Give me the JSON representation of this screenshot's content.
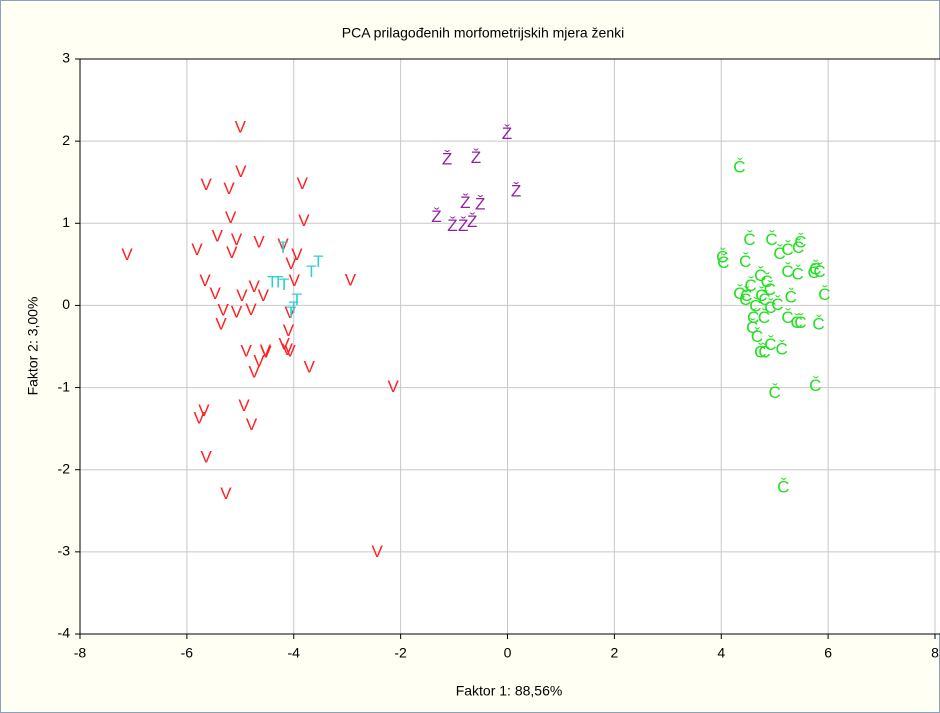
{
  "chart_data": {
    "type": "scatter",
    "title": "PCA prilagođenih morfometrijskih mjera ženki",
    "x_label": "Faktor 1: 88,56%",
    "y_label": "Faktor 2:  3,00%",
    "xlim": [
      -8,
      8
    ],
    "ylim": [
      -4,
      3
    ],
    "xticks": [
      -8,
      -6,
      -4,
      -2,
      0,
      2,
      4,
      6,
      8
    ],
    "yticks": [
      -4,
      -3,
      -2,
      -1,
      0,
      1,
      2,
      3
    ],
    "grid": true,
    "series": [
      {
        "name": "V",
        "color": "#ff2020",
        "x": [
          -7.12,
          -5.0,
          -5.64,
          -5.21,
          -4.99,
          -3.84,
          -5.18,
          -3.81,
          -5.81,
          -5.43,
          -5.07,
          -5.16,
          -4.65,
          -4.2,
          -3.94,
          -4.05,
          -5.66,
          -5.47,
          -4.97,
          -4.74,
          -4.57,
          -3.99,
          -2.94,
          -5.32,
          -5.36,
          -5.07,
          -4.8,
          -4.07,
          -4.1,
          -4.89,
          -4.52,
          -4.53,
          -4.18,
          -4.07,
          -4.65,
          -4.74,
          -3.71,
          -2.14,
          -4.93,
          -4.79,
          -5.77,
          -5.68,
          -5.64,
          -5.27,
          -2.44,
          -4.12
        ],
        "values": [
          0.61,
          2.16,
          1.46,
          1.41,
          1.62,
          1.47,
          1.06,
          1.02,
          0.67,
          0.83,
          0.79,
          0.63,
          0.76,
          0.73,
          0.61,
          0.5,
          0.29,
          0.13,
          0.11,
          0.22,
          0.11,
          0.29,
          0.3,
          -0.07,
          -0.24,
          -0.09,
          -0.06,
          -0.1,
          -0.32,
          -0.57,
          -0.58,
          -0.56,
          -0.48,
          -0.57,
          -0.69,
          -0.82,
          -0.76,
          -1.0,
          -1.23,
          -1.46,
          -1.38,
          -1.29,
          -1.86,
          -2.3,
          -3.01,
          -0.55
        ]
      },
      {
        "name": "T",
        "color": "#30d0d0",
        "x": [
          -4.2,
          -3.54,
          -3.67,
          -4.4,
          -4.29,
          -4.18,
          -3.94,
          -4.05,
          -4.0
        ],
        "values": [
          0.69,
          0.52,
          0.4,
          0.27,
          0.27,
          0.24,
          0.06,
          -0.1,
          -0.04
        ]
      },
      {
        "name": "Ž",
        "color": "#9020a0",
        "x": [
          -0.01,
          -1.13,
          -0.59,
          0.16,
          -0.79,
          -0.51,
          -1.33,
          -1.03,
          -0.83,
          -0.66
        ],
        "values": [
          2.08,
          1.77,
          1.79,
          1.38,
          1.24,
          1.22,
          1.07,
          0.96,
          0.96,
          1.01
        ]
      },
      {
        "name": "Č",
        "color": "#20e020",
        "x": [
          4.34,
          4.53,
          4.94,
          4.02,
          4.04,
          4.45,
          5.09,
          5.24,
          5.44,
          5.48,
          5.76,
          5.84,
          5.73,
          5.24,
          5.43,
          4.73,
          4.85,
          4.55,
          4.91,
          4.34,
          4.47,
          4.75,
          4.81,
          5.05,
          5.3,
          5.93,
          4.64,
          4.92,
          4.6,
          4.8,
          5.24,
          5.41,
          5.48,
          4.58,
          5.82,
          4.67,
          4.92,
          5.13,
          4.81,
          4.73,
          5.0,
          5.76,
          5.16,
          4.45
        ],
        "values": [
          1.67,
          0.79,
          0.79,
          0.58,
          0.51,
          0.52,
          0.62,
          0.67,
          0.69,
          0.76,
          0.43,
          0.4,
          0.39,
          0.4,
          0.37,
          0.35,
          0.28,
          0.23,
          0.18,
          0.13,
          0.11,
          0.11,
          0.06,
          0.0,
          0.09,
          0.12,
          -0.02,
          -0.04,
          -0.16,
          -0.16,
          -0.16,
          -0.22,
          -0.22,
          -0.28,
          -0.24,
          -0.39,
          -0.49,
          -0.54,
          -0.58,
          -0.58,
          -1.07,
          -0.99,
          -2.22,
          0.06
        ]
      }
    ]
  }
}
